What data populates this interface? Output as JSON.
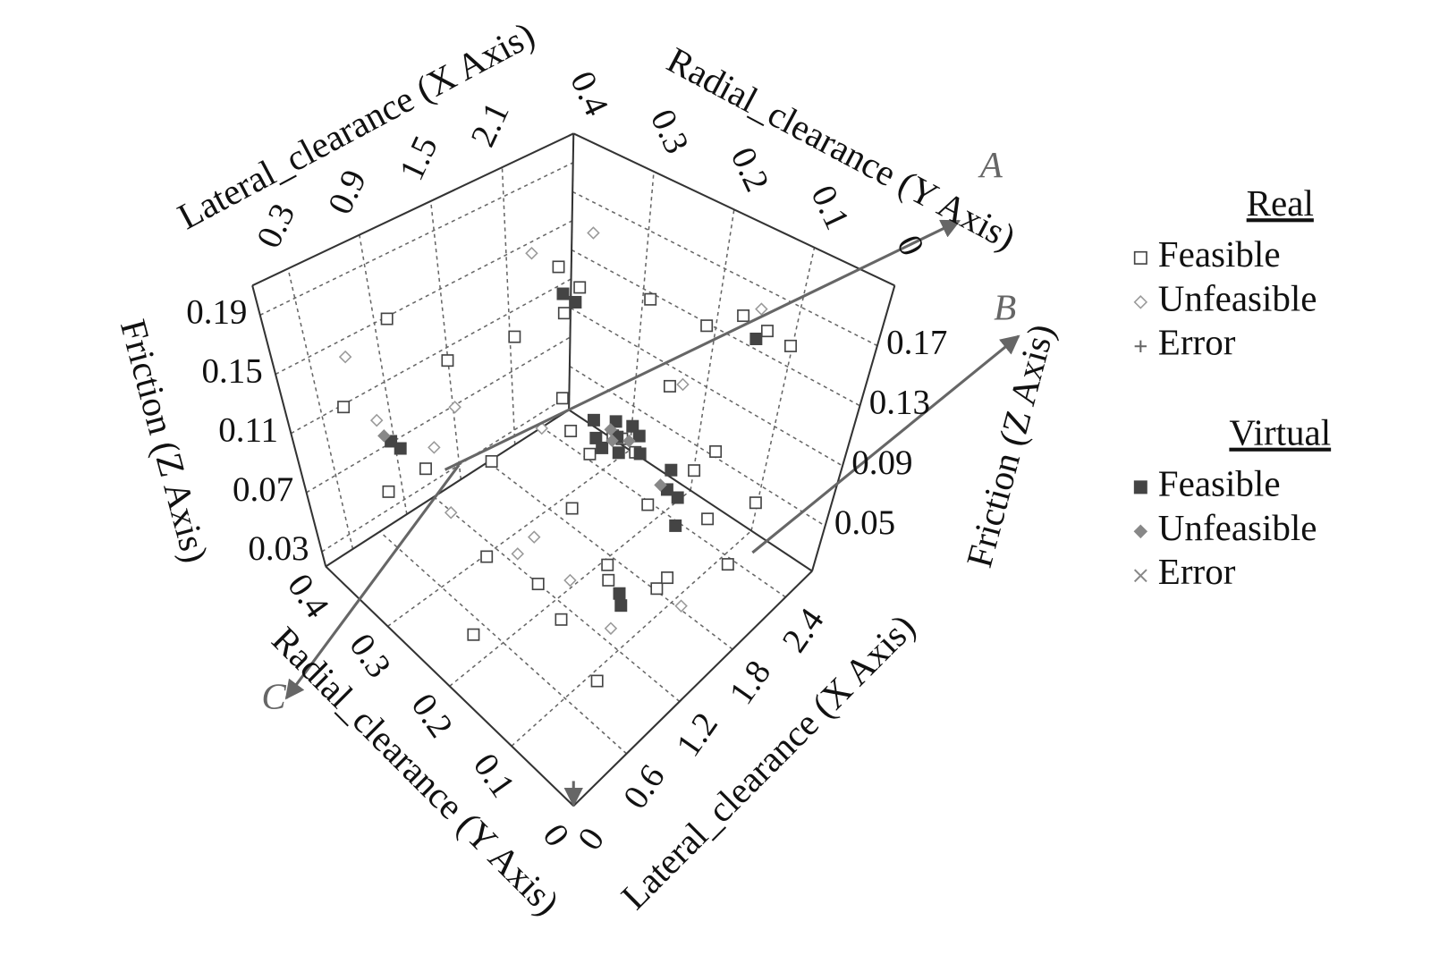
{
  "chart_data": {
    "type": "scatter3d",
    "x_label": "Lateral_clearance (X Axis)",
    "y_label": "Radial_clearance (Y Axis)",
    "z_label": "Friction (Z Axis)",
    "xlim": [
      0,
      2.7
    ],
    "ylim": [
      0,
      0.4
    ],
    "zlim": [
      0.02,
      0.21
    ],
    "xticks": [
      0,
      0.6,
      1.2,
      1.8,
      2.4
    ],
    "xticks_top": [
      0.3,
      0.9,
      1.5,
      2.1
    ],
    "yticks": [
      0,
      0.1,
      0.2,
      0.3,
      0.4
    ],
    "yticks_back": [
      0,
      0.1,
      0.2,
      0.3,
      0.4
    ],
    "zticks": [
      0.03,
      0.07,
      0.11,
      0.15,
      0.19
    ],
    "zticks_right": [
      0.05,
      0.09,
      0.13,
      0.17
    ],
    "grid": true,
    "annotations": [
      "A",
      "B",
      "C"
    ],
    "series": [
      {
        "group": "Real",
        "name": "Feasible",
        "marker": "square-open",
        "color": "#444444",
        "x": [
          2.4,
          2.3,
          2.5,
          2.4,
          2.3,
          2.5,
          2.2,
          1.8,
          1.9,
          1.7,
          2.0,
          1.6,
          1.8,
          2.1,
          2.2,
          1.5,
          1.2,
          0.9,
          0.6,
          0.5,
          0.8,
          1.0,
          1.4,
          1.6,
          2.0,
          1.1,
          0.4,
          0.7,
          1.3,
          2.4,
          1.9,
          0.3,
          1.7,
          2.3,
          1.2,
          0.9,
          2.1,
          1.5,
          0.6,
          2.5
        ],
        "y": [
          0.35,
          0.33,
          0.38,
          0.1,
          0.12,
          0.08,
          0.15,
          0.2,
          0.22,
          0.18,
          0.2,
          0.25,
          0.15,
          0.1,
          0.05,
          0.3,
          0.35,
          0.38,
          0.3,
          0.35,
          0.25,
          0.2,
          0.15,
          0.1,
          0.05,
          0.28,
          0.38,
          0.12,
          0.05,
          0.25,
          0.3,
          0.2,
          0.08,
          0.2,
          0.18,
          0.08,
          0.28,
          0.22,
          0.05,
          0.15
        ],
        "z": [
          0.12,
          0.14,
          0.1,
          0.17,
          0.18,
          0.16,
          0.17,
          0.1,
          0.09,
          0.11,
          0.08,
          0.12,
          0.07,
          0.06,
          0.08,
          0.15,
          0.13,
          0.16,
          0.1,
          0.07,
          0.05,
          0.04,
          0.05,
          0.04,
          0.05,
          0.09,
          0.12,
          0.06,
          0.08,
          0.15,
          0.18,
          0.04,
          0.12,
          0.11,
          0.14,
          0.09,
          0.05,
          0.06,
          0.05,
          0.07
        ]
      },
      {
        "group": "Real",
        "name": "Unfeasible",
        "marker": "diamond-open",
        "color": "#999999",
        "x": [
          2.2,
          1.8,
          0.5,
          0.4,
          1.0,
          1.3,
          0.8,
          1.5,
          2.0,
          0.7,
          1.1,
          1.6,
          0.9,
          2.3,
          1.4
        ],
        "y": [
          0.3,
          0.12,
          0.38,
          0.33,
          0.15,
          0.25,
          0.2,
          0.05,
          0.35,
          0.3,
          0.1,
          0.28,
          0.32,
          0.1,
          0.38
        ],
        "z": [
          0.19,
          0.16,
          0.15,
          0.13,
          0.06,
          0.04,
          0.07,
          0.05,
          0.17,
          0.11,
          0.04,
          0.09,
          0.05,
          0.19,
          0.08
        ]
      },
      {
        "group": "Real",
        "name": "Error",
        "marker": "plus",
        "color": "#666666",
        "x": [],
        "y": [],
        "z": []
      },
      {
        "group": "Virtual",
        "name": "Feasible",
        "marker": "square",
        "color": "#444444",
        "x": [
          1.8,
          1.85,
          1.75,
          1.9,
          1.7,
          1.8,
          1.95,
          1.65,
          1.8,
          2.0,
          2.05,
          2.1,
          1.9,
          2.4,
          2.35,
          0.6,
          0.62,
          1.2,
          1.25,
          2.3
        ],
        "y": [
          0.2,
          0.21,
          0.19,
          0.18,
          0.22,
          0.23,
          0.2,
          0.2,
          0.17,
          0.15,
          0.14,
          0.16,
          0.12,
          0.35,
          0.36,
          0.35,
          0.34,
          0.1,
          0.11,
          0.1
        ],
        "z": [
          0.1,
          0.105,
          0.095,
          0.09,
          0.11,
          0.09,
          0.1,
          0.1,
          0.11,
          0.07,
          0.065,
          0.075,
          0.06,
          0.12,
          0.125,
          0.1,
          0.098,
          0.05,
          0.052,
          0.17
        ]
      },
      {
        "group": "Virtual",
        "name": "Unfeasible",
        "marker": "diamond",
        "color": "#888888",
        "x": [
          1.8,
          1.75,
          1.85,
          2.0,
          0.6
        ],
        "y": [
          0.21,
          0.2,
          0.19,
          0.16,
          0.36
        ],
        "z": [
          0.102,
          0.1,
          0.098,
          0.07,
          0.1
        ]
      },
      {
        "group": "Virtual",
        "name": "Error",
        "marker": "x",
        "color": "#888888",
        "x": [],
        "y": [],
        "z": []
      }
    ]
  }
}
